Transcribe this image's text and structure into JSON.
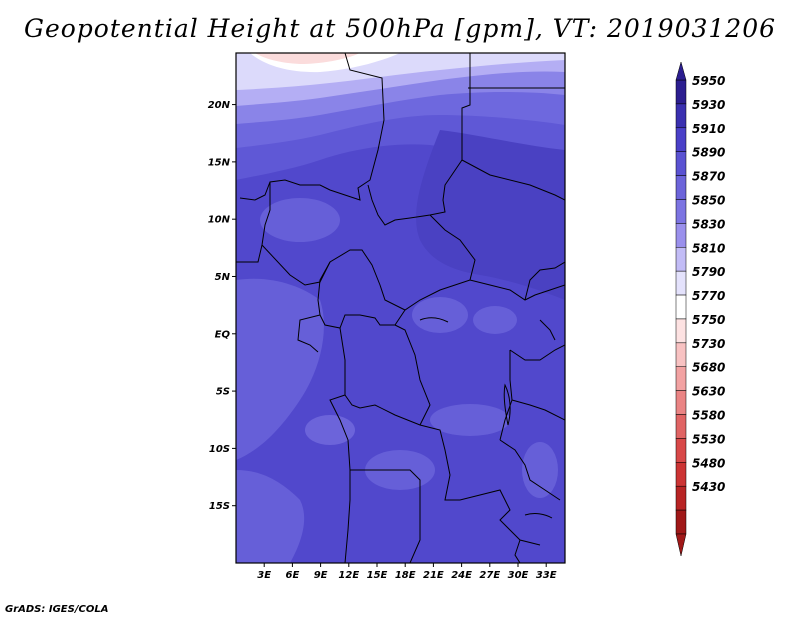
{
  "title": "Geopotential Height at 500hPa [gpm], VT: 2019031206",
  "credit": "GrADS: IGES/COLA",
  "map": {
    "lat_labels": [
      "20N",
      "15N",
      "10N",
      "5N",
      "EQ",
      "5S",
      "10S",
      "15S"
    ],
    "lon_labels": [
      "3E",
      "6E",
      "9E",
      "12E",
      "15E",
      "18E",
      "21E",
      "24E",
      "27E",
      "30E",
      "33E"
    ],
    "lat_values": [
      20,
      15,
      10,
      5,
      0,
      -5,
      -10,
      -15
    ],
    "lon_values": [
      3,
      6,
      9,
      12,
      15,
      18,
      21,
      24,
      27,
      30,
      33
    ],
    "extent": {
      "lon_min": 0,
      "lon_max": 35,
      "lat_min": -20,
      "lat_max": 24.5
    }
  },
  "colorbar": {
    "levels": [
      "5950",
      "5930",
      "5910",
      "5890",
      "5870",
      "5850",
      "5830",
      "5810",
      "5790",
      "5770",
      "5750",
      "5730",
      "5680",
      "5630",
      "5580",
      "5530",
      "5480",
      "5430"
    ],
    "colors": [
      "#2c1e90",
      "#3a30b0",
      "#4a40c8",
      "#5a52d2",
      "#6c64da",
      "#7c74e2",
      "#9a90ec",
      "#c2bcf6",
      "#e4e2fc",
      "#ffffff",
      "#fde2e2",
      "#f8c2c2",
      "#f2a2a2",
      "#ea8484",
      "#e06464",
      "#d84848",
      "#cc3434",
      "#b82424",
      "#a01818"
    ]
  }
}
